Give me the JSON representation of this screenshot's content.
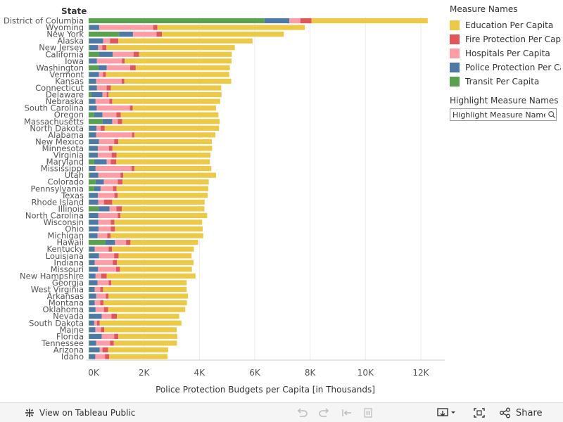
{
  "legend": {
    "title": "Measure Names",
    "items": [
      {
        "label": "Education Per Capita",
        "color": "#EDC948"
      },
      {
        "label": "Fire Protection Per Capita",
        "color": "#E15759"
      },
      {
        "label": "Hospitals Per Capita",
        "color": "#FF9DA7"
      },
      {
        "label": "Police Protection Per Capita",
        "color": "#4E79A7"
      },
      {
        "label": "Transit Per Capita",
        "color": "#59A14F"
      }
    ]
  },
  "highlight": {
    "title": "Highlight Measure Names",
    "placeholder": "Highlight Measure Names"
  },
  "toolbar": {
    "view_label": "View on Tableau Public",
    "share_label": "Share"
  },
  "chart_data": {
    "type": "bar",
    "orientation": "horizontal",
    "stacked": true,
    "row_header": "State",
    "xlabel": "Police Protection Budgets per Capita [in Thousands]",
    "ylabel": "State",
    "xlim": [
      0,
      12000
    ],
    "x_ticks": [
      0,
      2000,
      4000,
      6000,
      8000,
      10000,
      12000
    ],
    "x_tick_labels": [
      "0K",
      "2K",
      "4K",
      "6K",
      "8K",
      "10K",
      "12K"
    ],
    "grid": true,
    "series_order": [
      "Transit Per Capita",
      "Police Protection Per Capita",
      "Hospitals Per Capita",
      "Fire Protection Per Capita",
      "Education Per Capita"
    ],
    "categories": [
      "District of Columbia",
      "Wyoming",
      "New York",
      "Alaska",
      "New Jersey",
      "California",
      "Iowa",
      "Washington",
      "Vermont",
      "Kansas",
      "Connecticut",
      "Delaware",
      "Nebraska",
      "South Carolina",
      "Oregon",
      "Massachusetts",
      "North Dakota",
      "Alabama",
      "New Mexico",
      "Minnesota",
      "Virginia",
      "Maryland",
      "Mississippi",
      "Utah",
      "Colorado",
      "Pennsylvania",
      "Texas",
      "Rhode Island",
      "Illinois",
      "North Carolina",
      "Wisconsin",
      "Ohio",
      "Michigan",
      "Hawaii",
      "Kentucky",
      "Louisiana",
      "Indiana",
      "Missouri",
      "New Hampshire",
      "Georgia",
      "West Virginia",
      "Arkansas",
      "Montana",
      "Oklahoma",
      "Nevada",
      "South Dakota",
      "Maine",
      "Florida",
      "Tennessee",
      "Arizona",
      "Idaho"
    ],
    "series": [
      {
        "name": "Transit Per Capita",
        "values": [
          6350,
          30,
          1100,
          20,
          40,
          370,
          20,
          350,
          20,
          20,
          20,
          100,
          20,
          20,
          200,
          500,
          20,
          20,
          20,
          20,
          20,
          200,
          20,
          50,
          250,
          200,
          20,
          20,
          350,
          20,
          20,
          20,
          20,
          600,
          20,
          20,
          20,
          20,
          20,
          20,
          20,
          20,
          20,
          20,
          20,
          20,
          20,
          20,
          20,
          20,
          20
        ]
      },
      {
        "name": "Police Protection Per Capita",
        "values": [
          900,
          350,
          500,
          500,
          300,
          500,
          280,
          300,
          350,
          250,
          280,
          400,
          230,
          270,
          300,
          350,
          260,
          250,
          350,
          310,
          310,
          450,
          230,
          300,
          300,
          230,
          310,
          330,
          400,
          330,
          330,
          340,
          300,
          350,
          200,
          350,
          200,
          320,
          230,
          300,
          200,
          250,
          200,
          230,
          450,
          180,
          220,
          450,
          250,
          380,
          220
        ]
      },
      {
        "name": "Hospitals Per Capita",
        "values": [
          400,
          1950,
          850,
          250,
          150,
          750,
          900,
          850,
          150,
          920,
          350,
          150,
          500,
          1200,
          500,
          200,
          150,
          1300,
          550,
          400,
          500,
          150,
          1300,
          800,
          500,
          450,
          600,
          200,
          250,
          700,
          450,
          440,
          350,
          400,
          500,
          550,
          650,
          650,
          200,
          400,
          200,
          350,
          200,
          300,
          350,
          100,
          200,
          450,
          500,
          100,
          350
        ]
      },
      {
        "name": "Fire Protection Per Capita",
        "values": [
          400,
          150,
          200,
          300,
          150,
          200,
          100,
          200,
          100,
          100,
          150,
          70,
          100,
          100,
          160,
          160,
          150,
          80,
          150,
          130,
          180,
          200,
          100,
          100,
          170,
          130,
          120,
          300,
          200,
          100,
          130,
          150,
          120,
          160,
          120,
          160,
          150,
          140,
          200,
          100,
          100,
          100,
          120,
          150,
          200,
          100,
          120,
          150,
          140,
          200,
          150
        ]
      },
      {
        "name": "Education Per Capita",
        "values": [
          4200,
          5330,
          4400,
          4850,
          4640,
          3350,
          3860,
          3400,
          4460,
          3860,
          3990,
          4080,
          3900,
          3010,
          3530,
          3520,
          4130,
          2930,
          3380,
          3600,
          3390,
          3380,
          2780,
          3350,
          3120,
          3310,
          3250,
          3340,
          2980,
          3130,
          3170,
          3170,
          3350,
          2440,
          2960,
          2640,
          2770,
          2600,
          3210,
          2720,
          3020,
          2870,
          3010,
          2790,
          2250,
          2950,
          2620,
          2130,
          2280,
          2170,
          2110
        ]
      }
    ]
  }
}
